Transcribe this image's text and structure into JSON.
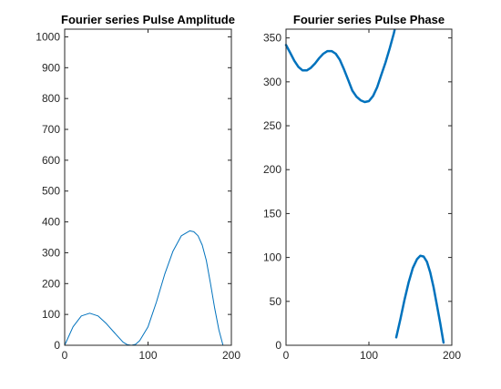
{
  "chart_data": [
    {
      "type": "line",
      "title": "Fourier series Pulse Amplitude",
      "xlim": [
        0,
        200
      ],
      "ylim": [
        0,
        1025
      ],
      "xticks": [
        0,
        100,
        200
      ],
      "yticks": [
        0,
        100,
        200,
        300,
        400,
        500,
        600,
        700,
        800,
        900,
        1000
      ],
      "grid": false,
      "series": [
        {
          "color": "#0072BD",
          "line_width": "thin",
          "x": [
            0,
            10,
            20,
            30,
            40,
            50,
            60,
            70,
            75,
            80,
            85,
            90,
            100,
            110,
            120,
            130,
            140,
            150,
            155,
            160,
            165,
            170,
            175,
            180,
            185,
            190
          ],
          "y": [
            0,
            60,
            95,
            104,
            95,
            70,
            40,
            10,
            2,
            0,
            3,
            15,
            60,
            140,
            230,
            305,
            355,
            371,
            368,
            355,
            325,
            275,
            200,
            120,
            50,
            0
          ]
        }
      ]
    },
    {
      "type": "line",
      "title": "Fourier series Pulse Phase",
      "xlim": [
        0,
        200
      ],
      "ylim": [
        0,
        360
      ],
      "xticks": [
        0,
        100,
        200
      ],
      "yticks": [
        0,
        50,
        100,
        150,
        200,
        250,
        300,
        350
      ],
      "grid": false,
      "series": [
        {
          "color": "#0072BD",
          "line_width": "thick",
          "x": [
            0,
            5,
            10,
            15,
            20,
            25,
            30,
            35,
            40,
            45,
            50,
            55,
            60,
            65,
            70,
            75,
            80,
            85,
            90,
            95,
            100,
            105,
            110,
            115,
            120,
            125,
            130,
            131
          ],
          "y": [
            342,
            333,
            324,
            317,
            313,
            313,
            316,
            321,
            327,
            332,
            335,
            335,
            332,
            325,
            314,
            302,
            290,
            283,
            279,
            277,
            278,
            284,
            294,
            308,
            322,
            338,
            355,
            359
          ]
        },
        {
          "color": "#0072BD",
          "line_width": "thick",
          "x": [
            133,
            138,
            143,
            148,
            153,
            158,
            162,
            166,
            170,
            174,
            178,
            182,
            186,
            190
          ],
          "y": [
            9,
            30,
            52,
            72,
            88,
            98,
            102,
            101,
            95,
            83,
            66,
            46,
            25,
            3
          ]
        }
      ]
    }
  ]
}
